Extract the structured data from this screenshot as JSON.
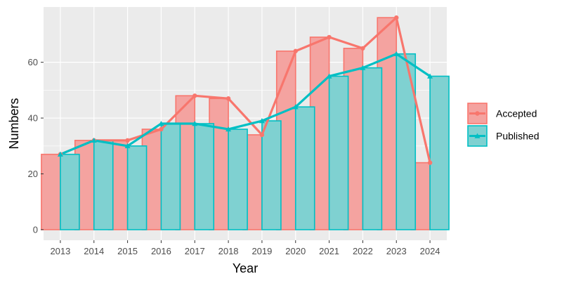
{
  "chart_data": {
    "type": "bar",
    "title": "",
    "xlabel": "Year",
    "ylabel": "Numbers",
    "categories": [
      "2013",
      "2014",
      "2015",
      "2016",
      "2017",
      "2018",
      "2019",
      "2020",
      "2021",
      "2022",
      "2023",
      "2024"
    ],
    "series": [
      {
        "name": "Accepted",
        "values": [
          27,
          32,
          32,
          36,
          48,
          47,
          34,
          64,
          69,
          65,
          76,
          24
        ],
        "color": "#F8766D",
        "fill": "#F4A3A0"
      },
      {
        "name": "Published",
        "values": [
          27,
          32,
          30,
          38,
          38,
          36,
          39,
          44,
          55,
          58,
          63,
          55
        ],
        "color": "#00BFC4",
        "fill": "#7FD1D1"
      }
    ],
    "overlay_lines": [
      "Accepted",
      "Published"
    ],
    "yticks": [
      0,
      20,
      40,
      60
    ],
    "ylim": [
      -3.8,
      79.8
    ],
    "grid": true,
    "panel_background": "#EBEBEB",
    "legend_position": "right"
  }
}
